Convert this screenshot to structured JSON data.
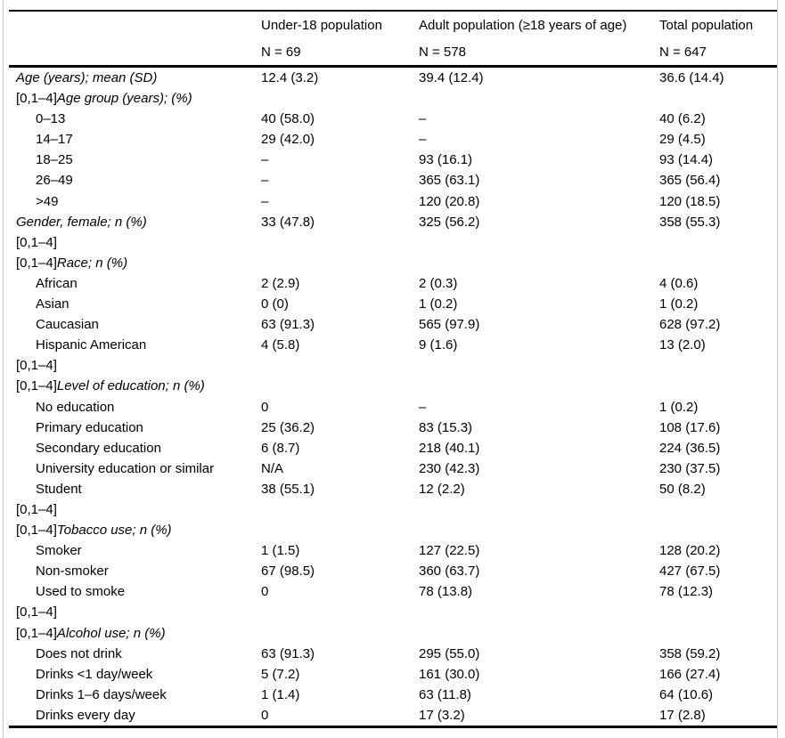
{
  "colors": {
    "background": "#ffffff",
    "text": "#000000",
    "rule": "#000000",
    "side_border": "#c9c9c9"
  },
  "table": {
    "columns": [
      {
        "title": "",
        "n": ""
      },
      {
        "title": "Under-18 population",
        "n": "N = 69"
      },
      {
        "title": "Adult population (≥18 years of age)",
        "n": "N = 578"
      },
      {
        "title": "Total population",
        "n": "N = 647"
      }
    ],
    "rows": [
      {
        "prefix": "",
        "italic": "Age (years); mean (SD)",
        "plain": "",
        "indent": 0,
        "cells": [
          "12.4 (3.2)",
          "39.4 (12.4)",
          "36.6 (14.4)"
        ]
      },
      {
        "prefix": "[0,1–4]",
        "italic": "Age group (years); (%)",
        "plain": "",
        "indent": 0,
        "cells": [
          "",
          "",
          ""
        ]
      },
      {
        "prefix": "",
        "italic": "",
        "plain": "0–13",
        "indent": 1,
        "cells": [
          "40 (58.0)",
          "–",
          "40 (6.2)"
        ]
      },
      {
        "prefix": "",
        "italic": "",
        "plain": "14–17",
        "indent": 1,
        "cells": [
          "29 (42.0)",
          "–",
          "29 (4.5)"
        ]
      },
      {
        "prefix": "",
        "italic": "",
        "plain": "18–25",
        "indent": 1,
        "cells": [
          "–",
          "93 (16.1)",
          "93 (14.4)"
        ]
      },
      {
        "prefix": "",
        "italic": "",
        "plain": "26–49",
        "indent": 1,
        "cells": [
          "–",
          "365 (63.1)",
          "365 (56.4)"
        ]
      },
      {
        "prefix": "",
        "italic": "",
        "plain": ">49",
        "indent": 1,
        "cells": [
          "–",
          "120 (20.8)",
          "120 (18.5)"
        ]
      },
      {
        "prefix": "",
        "italic": "Gender, female; n (%)",
        "plain": "",
        "indent": 0,
        "cells": [
          "33 (47.8)",
          "325 (56.2)",
          "358 (55.3)"
        ]
      },
      {
        "prefix": "[0,1–4]",
        "italic": "",
        "plain": "",
        "indent": 0,
        "cells": [
          "",
          "",
          ""
        ]
      },
      {
        "prefix": "[0,1–4]",
        "italic": "Race; n (%)",
        "plain": "",
        "indent": 0,
        "cells": [
          "",
          "",
          ""
        ]
      },
      {
        "prefix": "",
        "italic": "",
        "plain": "African",
        "indent": 1,
        "cells": [
          "2 (2.9)",
          "2 (0.3)",
          "4 (0.6)"
        ]
      },
      {
        "prefix": "",
        "italic": "",
        "plain": "Asian",
        "indent": 1,
        "cells": [
          "0 (0)",
          "1 (0.2)",
          "1 (0.2)"
        ]
      },
      {
        "prefix": "",
        "italic": "",
        "plain": "Caucasian",
        "indent": 1,
        "cells": [
          "63 (91.3)",
          "565 (97.9)",
          "628 (97.2)"
        ]
      },
      {
        "prefix": "",
        "italic": "",
        "plain": "Hispanic American",
        "indent": 1,
        "cells": [
          "4 (5.8)",
          "9 (1.6)",
          "13 (2.0)"
        ]
      },
      {
        "prefix": "[0,1–4]",
        "italic": "",
        "plain": "",
        "indent": 0,
        "cells": [
          "",
          "",
          ""
        ]
      },
      {
        "prefix": "[0,1–4]",
        "italic": "Level of education; n (%)",
        "plain": "",
        "indent": 0,
        "cells": [
          "",
          "",
          ""
        ]
      },
      {
        "prefix": "",
        "italic": "",
        "plain": "No education",
        "indent": 1,
        "cells": [
          "0",
          "–",
          "1 (0.2)"
        ]
      },
      {
        "prefix": "",
        "italic": "",
        "plain": "Primary education",
        "indent": 1,
        "cells": [
          "25 (36.2)",
          "83 (15.3)",
          "108 (17.6)"
        ]
      },
      {
        "prefix": "",
        "italic": "",
        "plain": "Secondary education",
        "indent": 1,
        "cells": [
          "6 (8.7)",
          "218 (40.1)",
          "224 (36.5)"
        ]
      },
      {
        "prefix": "",
        "italic": "",
        "plain": "University education or similar",
        "indent": 1,
        "cells": [
          "N/A",
          "230 (42.3)",
          "230 (37.5)"
        ]
      },
      {
        "prefix": "",
        "italic": "",
        "plain": "Student",
        "indent": 1,
        "cells": [
          "38 (55.1)",
          "12 (2.2)",
          "50 (8.2)"
        ]
      },
      {
        "prefix": "[0,1–4]",
        "italic": "",
        "plain": "",
        "indent": 0,
        "cells": [
          "",
          "",
          ""
        ]
      },
      {
        "prefix": "[0,1–4]",
        "italic": "Tobacco use; n (%)",
        "plain": "",
        "indent": 0,
        "cells": [
          "",
          "",
          ""
        ]
      },
      {
        "prefix": "",
        "italic": "",
        "plain": "Smoker",
        "indent": 1,
        "cells": [
          "1 (1.5)",
          "127 (22.5)",
          "128 (20.2)"
        ]
      },
      {
        "prefix": "",
        "italic": "",
        "plain": "Non-smoker",
        "indent": 1,
        "cells": [
          "67 (98.5)",
          "360 (63.7)",
          "427 (67.5)"
        ]
      },
      {
        "prefix": "",
        "italic": "",
        "plain": "Used to smoke",
        "indent": 1,
        "cells": [
          "0",
          "78 (13.8)",
          "78 (12.3)"
        ]
      },
      {
        "prefix": "[0,1–4]",
        "italic": "",
        "plain": "",
        "indent": 0,
        "cells": [
          "",
          "",
          ""
        ]
      },
      {
        "prefix": "[0,1–4]",
        "italic": "Alcohol use; n (%)",
        "plain": "",
        "indent": 0,
        "cells": [
          "",
          "",
          ""
        ]
      },
      {
        "prefix": "",
        "italic": "",
        "plain": "Does not drink",
        "indent": 1,
        "cells": [
          "63 (91.3)",
          "295 (55.0)",
          "358 (59.2)"
        ]
      },
      {
        "prefix": "",
        "italic": "",
        "plain": "Drinks <1 day/week",
        "indent": 1,
        "cells": [
          "5 (7.2)",
          "161 (30.0)",
          "166 (27.4)"
        ]
      },
      {
        "prefix": "",
        "italic": "",
        "plain": "Drinks 1–6 days/week",
        "indent": 1,
        "cells": [
          "1 (1.4)",
          "63 (11.8)",
          "64 (10.6)"
        ]
      },
      {
        "prefix": "",
        "italic": "",
        "plain": "Drinks every day",
        "indent": 1,
        "cells": [
          "0",
          "17 (3.2)",
          "17 (2.8)"
        ]
      }
    ]
  }
}
